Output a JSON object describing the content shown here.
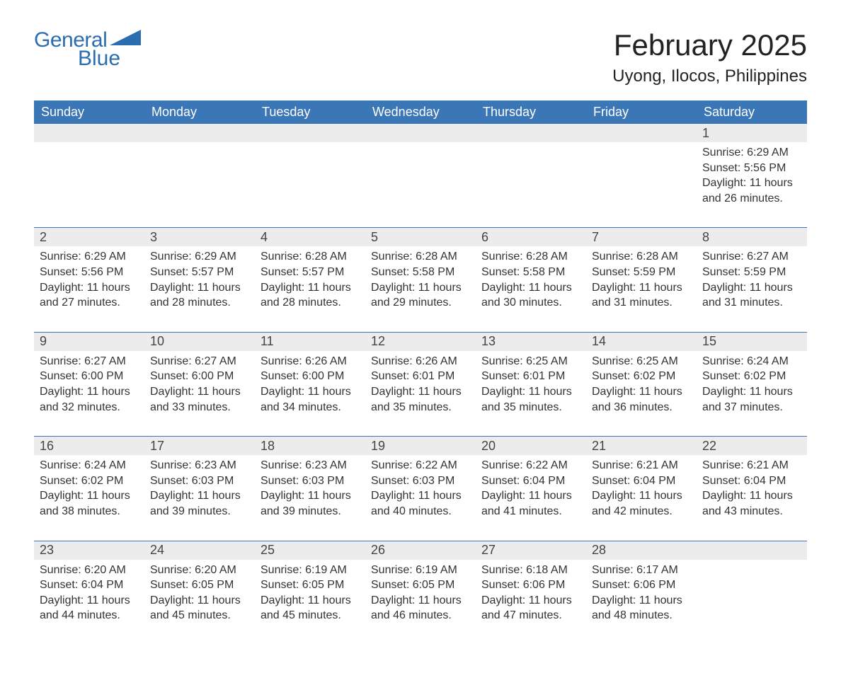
{
  "logo": {
    "word1": "General",
    "word2": "Blue",
    "brand_color": "#2a6db0"
  },
  "title": "February 2025",
  "location": "Uyong, Ilocos, Philippines",
  "colors": {
    "header_bg": "#3b77b6",
    "header_text": "#ffffff",
    "daynum_bg": "#ececec",
    "week_border": "#3b77b6",
    "text": "#333333",
    "background": "#ffffff"
  },
  "typography": {
    "title_fontsize": 42,
    "location_fontsize": 24,
    "weekday_fontsize": 18,
    "daynum_fontsize": 18,
    "body_fontsize": 16
  },
  "weekdays": [
    "Sunday",
    "Monday",
    "Tuesday",
    "Wednesday",
    "Thursday",
    "Friday",
    "Saturday"
  ],
  "weeks": [
    [
      null,
      null,
      null,
      null,
      null,
      null,
      {
        "day": "1",
        "sunrise": "Sunrise: 6:29 AM",
        "sunset": "Sunset: 5:56 PM",
        "daylight": "Daylight: 11 hours and 26 minutes."
      }
    ],
    [
      {
        "day": "2",
        "sunrise": "Sunrise: 6:29 AM",
        "sunset": "Sunset: 5:56 PM",
        "daylight": "Daylight: 11 hours and 27 minutes."
      },
      {
        "day": "3",
        "sunrise": "Sunrise: 6:29 AM",
        "sunset": "Sunset: 5:57 PM",
        "daylight": "Daylight: 11 hours and 28 minutes."
      },
      {
        "day": "4",
        "sunrise": "Sunrise: 6:28 AM",
        "sunset": "Sunset: 5:57 PM",
        "daylight": "Daylight: 11 hours and 28 minutes."
      },
      {
        "day": "5",
        "sunrise": "Sunrise: 6:28 AM",
        "sunset": "Sunset: 5:58 PM",
        "daylight": "Daylight: 11 hours and 29 minutes."
      },
      {
        "day": "6",
        "sunrise": "Sunrise: 6:28 AM",
        "sunset": "Sunset: 5:58 PM",
        "daylight": "Daylight: 11 hours and 30 minutes."
      },
      {
        "day": "7",
        "sunrise": "Sunrise: 6:28 AM",
        "sunset": "Sunset: 5:59 PM",
        "daylight": "Daylight: 11 hours and 31 minutes."
      },
      {
        "day": "8",
        "sunrise": "Sunrise: 6:27 AM",
        "sunset": "Sunset: 5:59 PM",
        "daylight": "Daylight: 11 hours and 31 minutes."
      }
    ],
    [
      {
        "day": "9",
        "sunrise": "Sunrise: 6:27 AM",
        "sunset": "Sunset: 6:00 PM",
        "daylight": "Daylight: 11 hours and 32 minutes."
      },
      {
        "day": "10",
        "sunrise": "Sunrise: 6:27 AM",
        "sunset": "Sunset: 6:00 PM",
        "daylight": "Daylight: 11 hours and 33 minutes."
      },
      {
        "day": "11",
        "sunrise": "Sunrise: 6:26 AM",
        "sunset": "Sunset: 6:00 PM",
        "daylight": "Daylight: 11 hours and 34 minutes."
      },
      {
        "day": "12",
        "sunrise": "Sunrise: 6:26 AM",
        "sunset": "Sunset: 6:01 PM",
        "daylight": "Daylight: 11 hours and 35 minutes."
      },
      {
        "day": "13",
        "sunrise": "Sunrise: 6:25 AM",
        "sunset": "Sunset: 6:01 PM",
        "daylight": "Daylight: 11 hours and 35 minutes."
      },
      {
        "day": "14",
        "sunrise": "Sunrise: 6:25 AM",
        "sunset": "Sunset: 6:02 PM",
        "daylight": "Daylight: 11 hours and 36 minutes."
      },
      {
        "day": "15",
        "sunrise": "Sunrise: 6:24 AM",
        "sunset": "Sunset: 6:02 PM",
        "daylight": "Daylight: 11 hours and 37 minutes."
      }
    ],
    [
      {
        "day": "16",
        "sunrise": "Sunrise: 6:24 AM",
        "sunset": "Sunset: 6:02 PM",
        "daylight": "Daylight: 11 hours and 38 minutes."
      },
      {
        "day": "17",
        "sunrise": "Sunrise: 6:23 AM",
        "sunset": "Sunset: 6:03 PM",
        "daylight": "Daylight: 11 hours and 39 minutes."
      },
      {
        "day": "18",
        "sunrise": "Sunrise: 6:23 AM",
        "sunset": "Sunset: 6:03 PM",
        "daylight": "Daylight: 11 hours and 39 minutes."
      },
      {
        "day": "19",
        "sunrise": "Sunrise: 6:22 AM",
        "sunset": "Sunset: 6:03 PM",
        "daylight": "Daylight: 11 hours and 40 minutes."
      },
      {
        "day": "20",
        "sunrise": "Sunrise: 6:22 AM",
        "sunset": "Sunset: 6:04 PM",
        "daylight": "Daylight: 11 hours and 41 minutes."
      },
      {
        "day": "21",
        "sunrise": "Sunrise: 6:21 AM",
        "sunset": "Sunset: 6:04 PM",
        "daylight": "Daylight: 11 hours and 42 minutes."
      },
      {
        "day": "22",
        "sunrise": "Sunrise: 6:21 AM",
        "sunset": "Sunset: 6:04 PM",
        "daylight": "Daylight: 11 hours and 43 minutes."
      }
    ],
    [
      {
        "day": "23",
        "sunrise": "Sunrise: 6:20 AM",
        "sunset": "Sunset: 6:04 PM",
        "daylight": "Daylight: 11 hours and 44 minutes."
      },
      {
        "day": "24",
        "sunrise": "Sunrise: 6:20 AM",
        "sunset": "Sunset: 6:05 PM",
        "daylight": "Daylight: 11 hours and 45 minutes."
      },
      {
        "day": "25",
        "sunrise": "Sunrise: 6:19 AM",
        "sunset": "Sunset: 6:05 PM",
        "daylight": "Daylight: 11 hours and 45 minutes."
      },
      {
        "day": "26",
        "sunrise": "Sunrise: 6:19 AM",
        "sunset": "Sunset: 6:05 PM",
        "daylight": "Daylight: 11 hours and 46 minutes."
      },
      {
        "day": "27",
        "sunrise": "Sunrise: 6:18 AM",
        "sunset": "Sunset: 6:06 PM",
        "daylight": "Daylight: 11 hours and 47 minutes."
      },
      {
        "day": "28",
        "sunrise": "Sunrise: 6:17 AM",
        "sunset": "Sunset: 6:06 PM",
        "daylight": "Daylight: 11 hours and 48 minutes."
      },
      null
    ]
  ]
}
